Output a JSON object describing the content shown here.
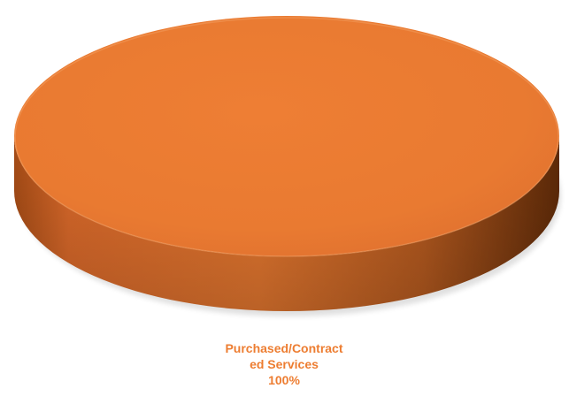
{
  "chart_data": {
    "type": "pie",
    "style": "3d",
    "categories": [
      "Purchased/Contracted Services"
    ],
    "values": [
      100
    ],
    "data_labels": [
      {
        "category_lines": [
          "Purchased/Contract",
          "ed Services"
        ],
        "percent": "100%"
      }
    ],
    "colors": [
      "#ED7D31"
    ],
    "legend": "none"
  }
}
